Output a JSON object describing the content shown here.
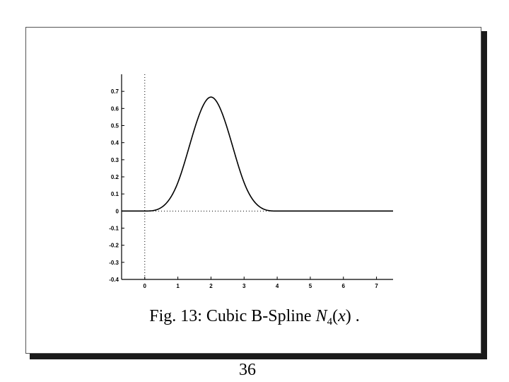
{
  "caption": {
    "prefix": "Fig. 13: Cubic B-Spline ",
    "symbol": "N",
    "subscript": "4",
    "paren_open": "(",
    "arg": "x",
    "paren_close": ")",
    "suffix": " ."
  },
  "page_number": "36",
  "chart_data": {
    "type": "line",
    "title": "",
    "xlabel": "",
    "ylabel": "",
    "xlim": [
      -0.7,
      7.5
    ],
    "ylim": [
      -0.4,
      0.8
    ],
    "x_ticks": [
      0,
      1,
      2,
      3,
      4,
      5,
      6,
      7
    ],
    "x_tick_labels": [
      "0",
      "1",
      "2",
      "3",
      "4",
      "5",
      "6",
      "7"
    ],
    "y_ticks": [
      0.7,
      0.6,
      0.5,
      0.4,
      0.3,
      0.2,
      0.1,
      0,
      -0.1,
      -0.2,
      -0.3,
      -0.4
    ],
    "y_tick_labels": [
      "0.7",
      "0.6",
      "0.5",
      "0.4",
      "0.3",
      "0.2",
      "0.1",
      "0",
      "-0.1",
      "-0.2",
      "-0.3",
      "-0.4"
    ],
    "grid": false,
    "reference_lines": {
      "vertical_at_x": 0,
      "horizontal_at_y": 0,
      "style": "dotted"
    },
    "series": [
      {
        "x": [
          -0.7,
          0,
          0.25,
          0.5,
          0.75,
          1,
          1.25,
          1.5,
          1.75,
          2,
          2.25,
          2.5,
          2.75,
          3,
          3.25,
          3.5,
          3.75,
          4,
          5,
          6,
          7,
          7.5
        ],
        "y": [
          0,
          0,
          0.0026,
          0.0208,
          0.0703,
          0.1667,
          0.3151,
          0.4792,
          0.612,
          0.6667,
          0.612,
          0.4792,
          0.3151,
          0.1667,
          0.0703,
          0.0208,
          0.0026,
          0,
          0,
          0,
          0,
          0
        ],
        "color": "#000000"
      }
    ]
  }
}
